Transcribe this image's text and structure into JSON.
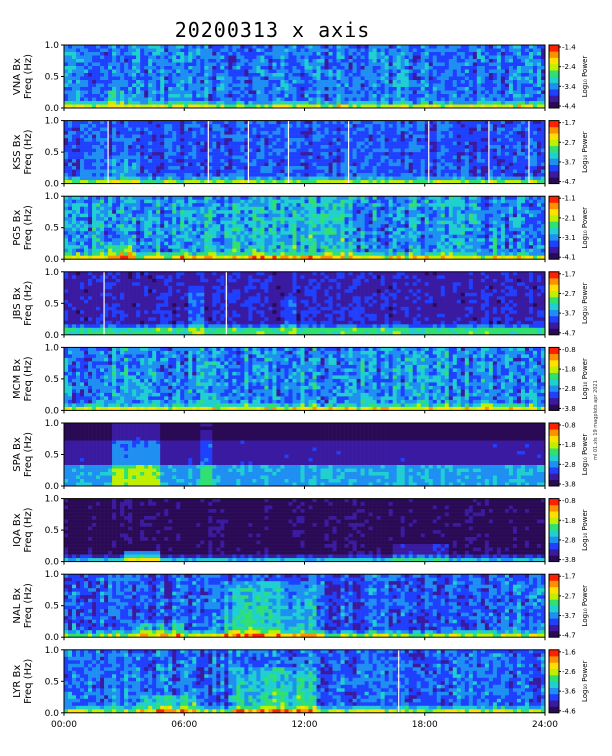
{
  "title": "20200313 x axis",
  "side_note": "ml 01.xls 19 magplots apr 2021",
  "colors": {
    "background": "#ffffff",
    "frame": "#000000",
    "colormap": [
      "#2a0a55",
      "#3a1aa0",
      "#2040ff",
      "#1f8ff2",
      "#20d0d0",
      "#30e070",
      "#c0f000",
      "#ffe000",
      "#ff9000",
      "#ff2000"
    ]
  },
  "chart_data": {
    "type": "heatmap",
    "x_tick_labels": [
      "00:00",
      "06:00",
      "12:00",
      "18:00",
      "24:00"
    ],
    "x_ticks_hours": [
      0,
      6,
      12,
      18,
      24
    ],
    "xlim_hours": [
      0,
      24
    ],
    "colorbar_label": "Log₁₀ Power",
    "panels": [
      {
        "station": "VNA",
        "ylabel_station": "VNA Bx",
        "ylabel_freq": "Freq (Hz)",
        "ylim": [
          0,
          1
        ],
        "y_tick_labels": [
          "0.0",
          "0.5",
          "1.0"
        ],
        "cb_ticks": [
          "-1.4",
          "-2.4",
          "-3.4",
          "-4.4"
        ],
        "base_level": 0.32,
        "noise": 0.1,
        "blank_lines_hours": [],
        "activity": [
          {
            "t0": 2.1,
            "t1": 3.0,
            "fmax": 0.25,
            "boost": 0.15
          }
        ],
        "lf_band": 0.05
      },
      {
        "station": "KSS",
        "ylabel_station": "KSS Bx",
        "ylabel_freq": "Freq (Hz)",
        "ylim": [
          0,
          1
        ],
        "y_tick_labels": [
          "0.0",
          "0.5",
          "1.0"
        ],
        "cb_ticks": [
          "-1.7",
          "-2.7",
          "-3.7",
          "-4.7"
        ],
        "base_level": 0.26,
        "noise": 0.08,
        "blank_lines_hours": [
          2.2,
          7.2,
          9.2,
          11.2,
          14.2,
          18.2,
          21.2,
          23.2
        ],
        "activity": [
          {
            "t0": 2.3,
            "t1": 3.8,
            "fmax": 0.45,
            "boost": 0.1
          }
        ],
        "lf_band": 0.05
      },
      {
        "station": "PG5",
        "ylabel_station": "PG5 Bx",
        "ylabel_freq": "Freq (Hz)",
        "ylim": [
          0,
          1
        ],
        "y_tick_labels": [
          "0.0",
          "0.5",
          "1.0"
        ],
        "cb_ticks": [
          "-1.1",
          "-2.1",
          "-3.1",
          "-4.1"
        ],
        "base_level": 0.36,
        "noise": 0.12,
        "blank_lines_hours": [],
        "activity": [
          {
            "t0": 2.3,
            "t1": 3.4,
            "fmax": 0.2,
            "boost": 0.25
          },
          {
            "t0": 5.5,
            "t1": 14.5,
            "fmax": 1.0,
            "boost": 0.08
          }
        ],
        "lf_band": 0.06
      },
      {
        "station": "JBS",
        "ylabel_station": "JBS Bx",
        "ylabel_freq": "Freq (Hz)",
        "ylim": [
          0,
          1
        ],
        "y_tick_labels": [
          "0.0",
          "0.5",
          "1.0"
        ],
        "cb_ticks": [
          "-1.7",
          "-2.7",
          "-3.7",
          "-4.7"
        ],
        "base_level": 0.18,
        "noise": 0.06,
        "blank_lines_hours": [
          2.0,
          8.1
        ],
        "activity": [
          {
            "t0": 6.2,
            "t1": 7.0,
            "fmax": 0.8,
            "boost": 0.12
          },
          {
            "t0": 10.8,
            "t1": 11.5,
            "fmax": 0.6,
            "boost": 0.1
          }
        ],
        "lf_band": 0.09
      },
      {
        "station": "MCM",
        "ylabel_station": "MCM Bx",
        "ylabel_freq": "Freq (Hz)",
        "ylim": [
          0,
          1
        ],
        "y_tick_labels": [
          "0.0",
          "0.5",
          "1.0"
        ],
        "cb_ticks": [
          "-0.8",
          "-1.8",
          "-2.8",
          "-3.8"
        ],
        "base_level": 0.33,
        "noise": 0.12,
        "blank_lines_hours": [],
        "activity": [
          {
            "t0": 0.0,
            "t1": 24.0,
            "fmax": 1.0,
            "boost": 0.03
          }
        ],
        "lf_band": 0.05
      },
      {
        "station": "SPA",
        "ylabel_station": "SPA Bx",
        "ylabel_freq": "Freq (Hz)",
        "ylim": [
          0,
          1
        ],
        "y_tick_labels": [
          "0.0",
          "0.5",
          "1.0"
        ],
        "cb_ticks": [
          "-0.8",
          "-1.8",
          "-2.8",
          "-3.8"
        ],
        "base_level": 0.04,
        "noise": 0.03,
        "blank_lines_hours": [],
        "activity": [
          {
            "t0": 2.5,
            "t1": 4.8,
            "fmax": 1.0,
            "boost": 0.25
          },
          {
            "t0": 6.8,
            "t1": 7.4,
            "fmax": 1.0,
            "boost": 0.18
          }
        ],
        "lf_band": 0.35
      },
      {
        "station": "IQA",
        "ylabel_station": "IQA Bx",
        "ylabel_freq": "Freq (Hz)",
        "ylim": [
          0,
          1
        ],
        "y_tick_labels": [
          "0.0",
          "0.5",
          "1.0"
        ],
        "cb_ticks": [
          "-0.8",
          "-1.8",
          "-2.8",
          "-3.8"
        ],
        "base_level": 0.07,
        "noise": 0.04,
        "blank_lines_hours": [],
        "activity": [
          {
            "t0": 3.0,
            "t1": 4.8,
            "fmax": 0.15,
            "boost": 0.3
          },
          {
            "t0": 16.5,
            "t1": 19.2,
            "fmax": 0.3,
            "boost": 0.12
          }
        ],
        "lf_band": 0.05
      },
      {
        "station": "NAL",
        "ylabel_station": "NAL Bx",
        "ylabel_freq": "Freq (Hz)",
        "ylim": [
          0,
          1
        ],
        "y_tick_labels": [
          "0.0",
          "0.5",
          "1.0"
        ],
        "cb_ticks": [
          "-1.7",
          "-2.7",
          "-3.7",
          "-4.7"
        ],
        "base_level": 0.27,
        "noise": 0.1,
        "blank_lines_hours": [],
        "activity": [
          {
            "t0": 3.5,
            "t1": 6.0,
            "fmax": 0.2,
            "boost": 0.15
          },
          {
            "t0": 8.0,
            "t1": 12.5,
            "fmax": 0.9,
            "boost": 0.22
          }
        ],
        "lf_band": 0.06
      },
      {
        "station": "LYR",
        "ylabel_station": "LYR Bx",
        "ylabel_freq": "Freq (Hz)",
        "ylim": [
          0,
          1
        ],
        "y_tick_labels": [
          "0.0",
          "0.5",
          "1.0"
        ],
        "cb_ticks": [
          "-1.6",
          "-2.6",
          "-3.6",
          "-4.6"
        ],
        "base_level": 0.3,
        "noise": 0.1,
        "blank_lines_hours": [
          16.7
        ],
        "activity": [
          {
            "t0": 3.8,
            "t1": 6.5,
            "fmax": 0.3,
            "boost": 0.18
          },
          {
            "t0": 8.5,
            "t1": 12.5,
            "fmax": 0.7,
            "boost": 0.2
          }
        ],
        "lf_band": 0.05
      }
    ]
  }
}
